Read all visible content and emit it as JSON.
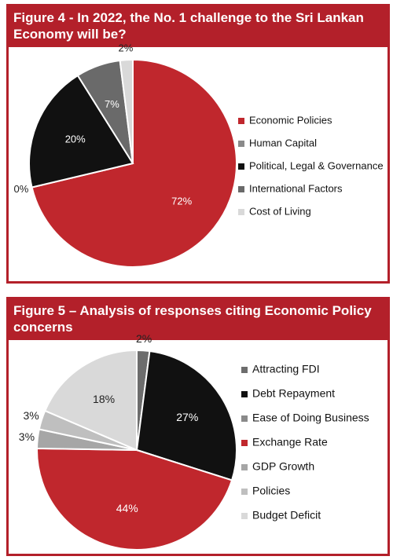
{
  "chart_data": [
    {
      "type": "pie",
      "title": "Figure 4 - In 2022, the No. 1 challenge to the Sri Lankan Economy will be?",
      "categories": [
        "Economic Policies",
        "Human Capital",
        "Political, Legal & Governance",
        "International Factors",
        "Cost of Living"
      ],
      "values": [
        72,
        0,
        20,
        7,
        2
      ],
      "value_labels": [
        "72%",
        "0%",
        "20%",
        "7%",
        "2%"
      ],
      "colors": [
        "#c0272d",
        "#8a8a8a",
        "#111111",
        "#6a6a6a",
        "#d9d9d9"
      ]
    },
    {
      "type": "pie",
      "title": "Figure 5 – Analysis of responses citing Economic Policy concerns",
      "categories": [
        "Attracting FDI",
        "Debt Repayment",
        "Ease of Doing Business",
        "Exchange Rate",
        "GDP Growth",
        "Policies",
        "Budget Deficit"
      ],
      "values": [
        2,
        27,
        0,
        44,
        3,
        3,
        18
      ],
      "value_labels": [
        "2%",
        "27%",
        null,
        "44%",
        "3%",
        "3%",
        "18%"
      ],
      "colors": [
        "#6d6d6d",
        "#111111",
        "#8a8a8a",
        "#c0272d",
        "#a6a6a6",
        "#bfbfbf",
        "#d9d9d9"
      ]
    }
  ]
}
